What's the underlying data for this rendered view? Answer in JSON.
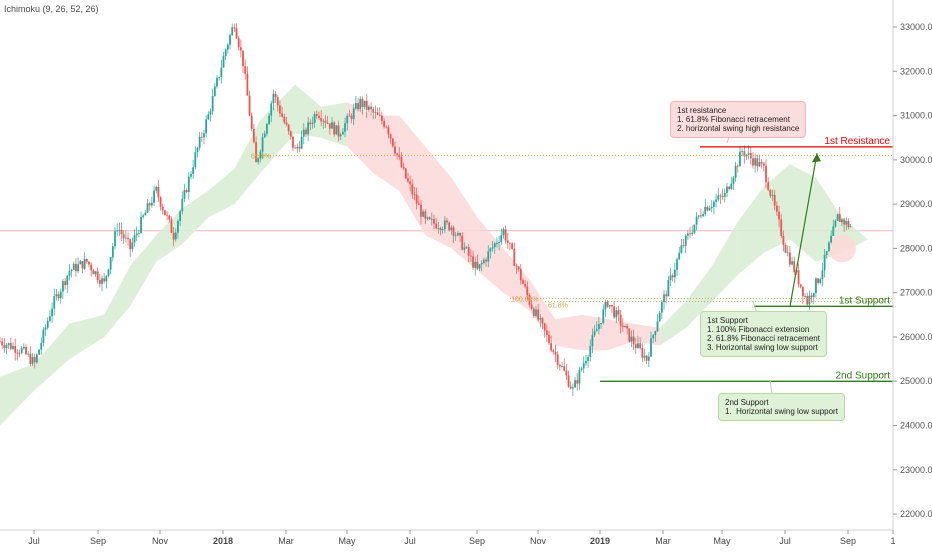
{
  "indicator": "Ichimoku (9, 26, 52, 26)",
  "colors": {
    "up": "#26a69a",
    "down": "#ef5350",
    "resistance": "#e20000",
    "support": "#2e7d1a",
    "cloud_green": "#d7ecd1",
    "cloud_red": "#fcd8d8",
    "fib": "#d4a04c"
  },
  "levels": {
    "resistance1": {
      "label": "1st Resistance",
      "price_tag": "30293.5",
      "value": 30293.5
    },
    "support1": {
      "label": "1st Support",
      "price_tag": "26692.3",
      "value": 26692.3
    },
    "support2": {
      "label": "2nd Support",
      "price_tag": "24998.1",
      "value": 24998.1
    }
  },
  "fib_labels": {
    "left_618": "61.8%",
    "ext_100": "100.00%",
    "ret_618": "61.8%"
  },
  "notes": {
    "resistance": "1st resistance\n1. 61.8% Fibonacci retracement\n2. horizontal swing high resistance",
    "support1": "1st Support\n1. 100% Fibonacci extension\n2. 61.8% Fibonacci retracement\n3. Horizontal swing low support",
    "support2": "2nd Support\n1.  Horizontal swing low support"
  },
  "chart_data": {
    "type": "candlestick",
    "x_ticks": [
      "Jul",
      "Sep",
      "Nov",
      "2018",
      "Mar",
      "May",
      "Jul",
      "Sep",
      "Nov",
      "2019",
      "Mar",
      "May",
      "Jul",
      "Sep",
      "1"
    ],
    "y_ticks": [
      "33000.0",
      "32000.0",
      "31000.0",
      "30000.0",
      "29000.0",
      "28000.0",
      "27000.0",
      "26000.0",
      "25000.0",
      "24000.0",
      "23000.0",
      "22000.0"
    ],
    "ylim": [
      21800,
      33400
    ],
    "price_path": [
      [
        0,
        25900
      ],
      [
        5,
        25700
      ],
      [
        8,
        25400
      ],
      [
        12,
        26700
      ],
      [
        16,
        27500
      ],
      [
        20,
        27700
      ],
      [
        24,
        27200
      ],
      [
        27,
        28500
      ],
      [
        30,
        28000
      ],
      [
        33,
        28700
      ],
      [
        36,
        29300
      ],
      [
        40,
        28300
      ],
      [
        45,
        30100
      ],
      [
        48,
        31000
      ],
      [
        52,
        32500
      ],
      [
        54,
        33100
      ],
      [
        56,
        32200
      ],
      [
        59,
        29900
      ],
      [
        63,
        31500
      ],
      [
        68,
        30200
      ],
      [
        73,
        31100
      ],
      [
        78,
        30600
      ],
      [
        83,
        31300
      ],
      [
        89,
        30800
      ],
      [
        93,
        29700
      ],
      [
        98,
        28600
      ],
      [
        104,
        28500
      ],
      [
        110,
        27500
      ],
      [
        116,
        28400
      ],
      [
        122,
        26800
      ],
      [
        128,
        25600
      ],
      [
        132,
        24800
      ],
      [
        136,
        25800
      ],
      [
        140,
        26800
      ],
      [
        145,
        26000
      ],
      [
        149,
        25500
      ],
      [
        152,
        26600
      ],
      [
        157,
        28000
      ],
      [
        162,
        28900
      ],
      [
        167,
        29200
      ],
      [
        171,
        30200
      ],
      [
        176,
        29800
      ],
      [
        181,
        28000
      ],
      [
        186,
        26800
      ],
      [
        189,
        27400
      ],
      [
        193,
        28700
      ],
      [
        196,
        28500
      ]
    ],
    "cloud": {
      "upper": [
        [
          0,
          25100
        ],
        [
          8,
          25400
        ],
        [
          16,
          26300
        ],
        [
          24,
          26500
        ],
        [
          30,
          27600
        ],
        [
          36,
          28300
        ],
        [
          42,
          28900
        ],
        [
          48,
          29300
        ],
        [
          54,
          29800
        ],
        [
          60,
          30900
        ],
        [
          68,
          31700
        ],
        [
          74,
          31200
        ],
        [
          80,
          31300
        ],
        [
          86,
          31000
        ],
        [
          92,
          31000
        ],
        [
          98,
          30300
        ],
        [
          104,
          29600
        ],
        [
          110,
          28700
        ],
        [
          116,
          28000
        ],
        [
          122,
          27300
        ],
        [
          128,
          26400
        ],
        [
          134,
          26500
        ],
        [
          140,
          26400
        ],
        [
          146,
          26300
        ],
        [
          152,
          26200
        ],
        [
          158,
          26800
        ],
        [
          164,
          27600
        ],
        [
          170,
          28600
        ],
        [
          176,
          29400
        ],
        [
          182,
          29900
        ],
        [
          188,
          29600
        ],
        [
          194,
          28700
        ],
        [
          200,
          28200
        ]
      ],
      "lower": [
        [
          0,
          24000
        ],
        [
          8,
          24800
        ],
        [
          16,
          25500
        ],
        [
          24,
          26000
        ],
        [
          30,
          26700
        ],
        [
          36,
          27700
        ],
        [
          42,
          28100
        ],
        [
          48,
          28700
        ],
        [
          54,
          29000
        ],
        [
          60,
          29700
        ],
        [
          68,
          30600
        ],
        [
          74,
          30500
        ],
        [
          80,
          30300
        ],
        [
          86,
          29700
        ],
        [
          92,
          29300
        ],
        [
          98,
          28300
        ],
        [
          104,
          28000
        ],
        [
          110,
          27500
        ],
        [
          116,
          27000
        ],
        [
          122,
          26600
        ],
        [
          128,
          25800
        ],
        [
          134,
          25700
        ],
        [
          140,
          25700
        ],
        [
          146,
          25900
        ],
        [
          152,
          25800
        ],
        [
          158,
          26200
        ],
        [
          164,
          26800
        ],
        [
          170,
          27400
        ],
        [
          176,
          27900
        ],
        [
          182,
          28200
        ],
        [
          188,
          27700
        ],
        [
          194,
          27900
        ],
        [
          200,
          28200
        ]
      ]
    }
  }
}
